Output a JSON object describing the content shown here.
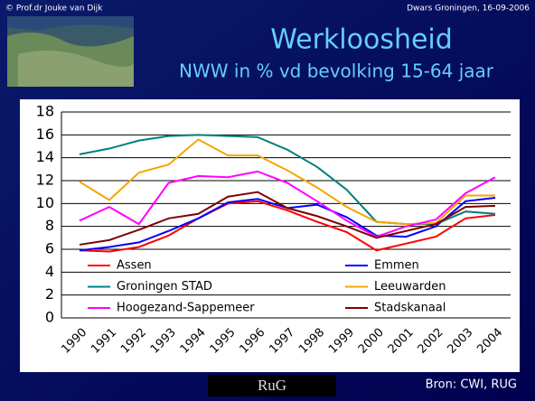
{
  "header": {
    "copyright": "© Prof.dr Jouke van Dijk",
    "event": "Dwars Groningen, 16-09-2006"
  },
  "chart_data": {
    "type": "line",
    "title": "Werkloosheid",
    "subtitle": "NWW in % vd bevolking 15-64 jaar",
    "categories": [
      "1990",
      "1991",
      "1992",
      "1993",
      "1994",
      "1995",
      "1996",
      "1997",
      "1998",
      "1999",
      "2000",
      "2001",
      "2002",
      "2003",
      "2004"
    ],
    "series": [
      {
        "name": "Assen",
        "color": "#ff0000",
        "values": [
          5.9,
          5.8,
          6.2,
          7.2,
          8.7,
          10.0,
          10.2,
          9.4,
          8.4,
          7.5,
          5.9,
          6.5,
          7.1,
          8.7,
          9.0
        ]
      },
      {
        "name": "Emmen",
        "color": "#0000ff",
        "values": [
          5.9,
          6.2,
          6.6,
          7.6,
          8.7,
          10.1,
          10.4,
          9.6,
          9.9,
          8.8,
          7.2,
          7.1,
          8.0,
          10.2,
          10.5
        ]
      },
      {
        "name": "Groningen STAD",
        "color": "#008080",
        "values": [
          14.3,
          14.8,
          15.5,
          15.9,
          16.0,
          15.9,
          15.8,
          14.7,
          13.2,
          11.2,
          8.4,
          8.2,
          8.2,
          9.3,
          9.1
        ]
      },
      {
        "name": "Leeuwarden",
        "color": "#f5a500",
        "values": [
          11.9,
          10.3,
          12.7,
          13.4,
          15.6,
          14.2,
          14.2,
          12.9,
          11.4,
          9.7,
          8.4,
          8.2,
          8.3,
          10.7,
          10.7
        ]
      },
      {
        "name": "Hoogezand-Sappemeer",
        "color": "#ff00ff",
        "values": [
          8.5,
          9.7,
          8.2,
          11.8,
          12.4,
          12.3,
          12.8,
          11.8,
          10.2,
          8.5,
          7.1,
          8.0,
          8.6,
          10.9,
          12.3
        ]
      },
      {
        "name": "Stadskanaal",
        "color": "#800000",
        "values": [
          6.4,
          6.8,
          7.7,
          8.7,
          9.1,
          10.6,
          11.0,
          9.6,
          8.9,
          8.0,
          7.0,
          7.6,
          8.2,
          9.7,
          9.8
        ]
      }
    ],
    "ylim": [
      0,
      18
    ],
    "yticks": [
      0,
      2,
      4,
      6,
      8,
      10,
      12,
      14,
      16,
      18
    ],
    "grid": true
  },
  "footer": {
    "logo": "RuG",
    "source": "Bron: CWI, RUG"
  }
}
